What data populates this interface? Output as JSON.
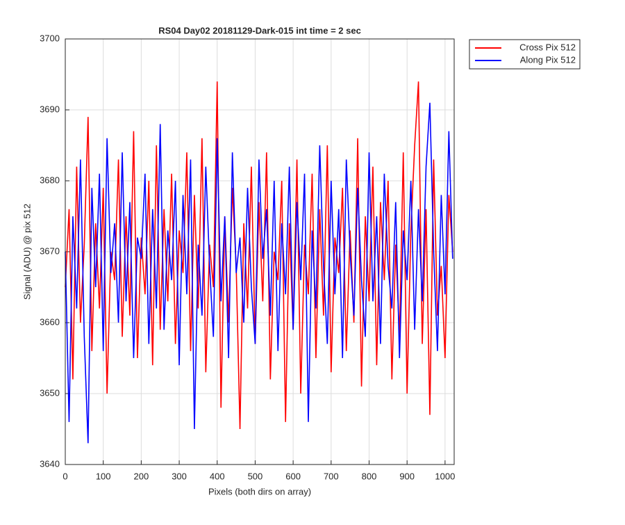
{
  "chart_data": {
    "type": "line",
    "title": "RS04 Day02 20181129-Dark-015 int time = 2 sec",
    "xlabel": "Pixels (both dirs on array)",
    "ylabel": "Signal (ADU) @ pix 512",
    "x": [
      0,
      10,
      20,
      30,
      40,
      50,
      60,
      70,
      80,
      90,
      100,
      110,
      120,
      130,
      140,
      150,
      160,
      170,
      180,
      190,
      200,
      210,
      220,
      230,
      240,
      250,
      260,
      270,
      280,
      290,
      300,
      310,
      320,
      330,
      340,
      350,
      360,
      370,
      380,
      390,
      400,
      410,
      420,
      430,
      440,
      450,
      460,
      470,
      480,
      490,
      500,
      510,
      520,
      530,
      540,
      550,
      560,
      570,
      580,
      590,
      600,
      610,
      620,
      630,
      640,
      650,
      660,
      670,
      680,
      690,
      700,
      710,
      720,
      730,
      740,
      750,
      760,
      770,
      780,
      790,
      800,
      810,
      820,
      830,
      840,
      850,
      860,
      870,
      880,
      890,
      900,
      910,
      920,
      930,
      940,
      950,
      960,
      970,
      980,
      990,
      1000,
      1010,
      1020
    ],
    "series": [
      {
        "name": "Cross Pix 512",
        "color": "#ff0000",
        "values": [
          3665,
          3676,
          3652,
          3682,
          3660,
          3671,
          3689,
          3656,
          3674,
          3662,
          3679,
          3650,
          3670,
          3666,
          3683,
          3658,
          3675,
          3661,
          3687,
          3655,
          3672,
          3664,
          3680,
          3654,
          3685,
          3659,
          3676,
          3663,
          3681,
          3657,
          3673,
          3667,
          3684,
          3656,
          3678,
          3662,
          3686,
          3653,
          3671,
          3665,
          3694,
          3648,
          3675,
          3660,
          3679,
          3668,
          3645,
          3674,
          3662,
          3682,
          3657,
          3677,
          3663,
          3684,
          3652,
          3670,
          3666,
          3680,
          3646,
          3674,
          3659,
          3683,
          3650,
          3671,
          3664,
          3681,
          3655,
          3676,
          3661,
          3685,
          3653,
          3672,
          3667,
          3679,
          3656,
          3673,
          3660,
          3686,
          3651,
          3675,
          3663,
          3682,
          3654,
          3677,
          3666,
          3680,
          3652,
          3671,
          3658,
          3684,
          3650,
          3673,
          3685,
          3694,
          3657,
          3676,
          3647,
          3683,
          3661,
          3668,
          3655,
          3678,
          3670
        ]
      },
      {
        "name": "Along Pix 512",
        "color": "#0000ff",
        "values": [
          3670,
          3646,
          3675,
          3662,
          3683,
          3658,
          3643,
          3679,
          3665,
          3681,
          3656,
          3686,
          3667,
          3674,
          3660,
          3684,
          3663,
          3677,
          3655,
          3672,
          3669,
          3681,
          3657,
          3676,
          3662,
          3688,
          3659,
          3673,
          3666,
          3680,
          3654,
          3678,
          3664,
          3683,
          3645,
          3671,
          3661,
          3682,
          3668,
          3658,
          3686,
          3663,
          3675,
          3655,
          3684,
          3667,
          3672,
          3660,
          3679,
          3665,
          3657,
          3683,
          3669,
          3676,
          3661,
          3680,
          3656,
          3674,
          3664,
          3682,
          3659,
          3677,
          3666,
          3681,
          3646,
          3673,
          3662,
          3685,
          3668,
          3657,
          3680,
          3664,
          3676,
          3655,
          3683,
          3670,
          3661,
          3679,
          3666,
          3658,
          3684,
          3663,
          3675,
          3657,
          3681,
          3668,
          3662,
          3677,
          3655,
          3673,
          3666,
          3680,
          3659,
          3676,
          3663,
          3682,
          3691,
          3670,
          3656,
          3678,
          3664,
          3687,
          3669
        ]
      }
    ],
    "xlim": [
      0,
      1024
    ],
    "ylim": [
      3640,
      3700
    ],
    "xticks": [
      0,
      100,
      200,
      300,
      400,
      500,
      600,
      700,
      800,
      900,
      1000
    ],
    "yticks": [
      3640,
      3650,
      3660,
      3670,
      3680,
      3690,
      3700
    ],
    "grid": true,
    "legend": "outside-northeast"
  }
}
